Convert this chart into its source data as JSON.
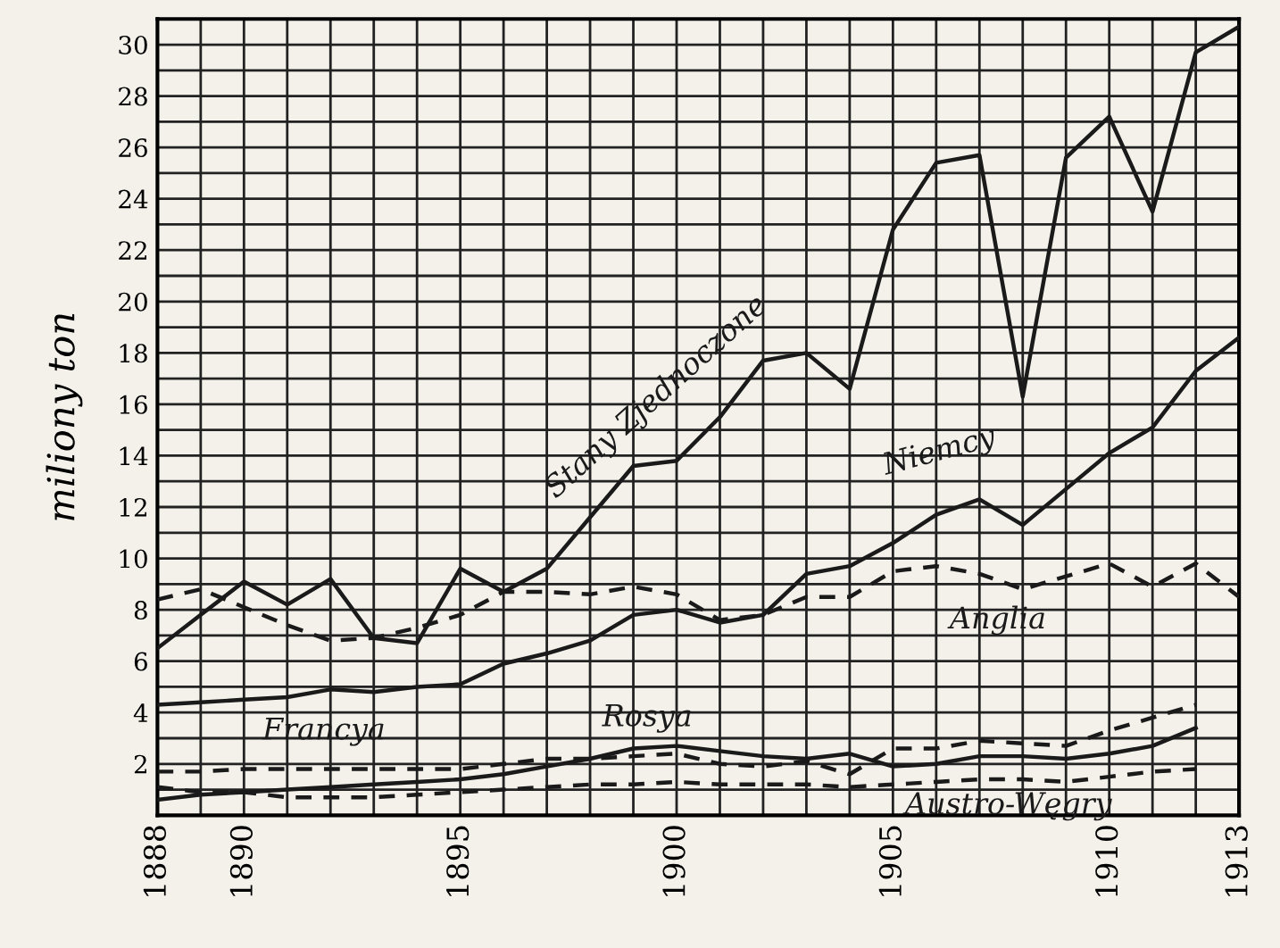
{
  "chart_data": {
    "type": "line",
    "ylabel": "miliony ton",
    "x": [
      1888,
      1889,
      1890,
      1891,
      1892,
      1893,
      1894,
      1895,
      1896,
      1897,
      1898,
      1899,
      1900,
      1901,
      1902,
      1903,
      1904,
      1905,
      1906,
      1907,
      1908,
      1909,
      1910,
      1911,
      1912,
      1913
    ],
    "xlim": [
      1888,
      1913
    ],
    "xticks": [
      1888,
      1890,
      1895,
      1900,
      1905,
      1910,
      1913
    ],
    "ylim": [
      0,
      31
    ],
    "yticks": [
      2,
      4,
      6,
      8,
      10,
      12,
      14,
      16,
      18,
      20,
      22,
      24,
      26,
      28,
      30
    ],
    "grid": true,
    "legend": false,
    "marker": "none",
    "series": [
      {
        "name": "Stany Zjednoczone",
        "color": "#1a1a1a",
        "line_style": "solid",
        "values": [
          6.5,
          7.8,
          9.1,
          8.2,
          9.2,
          6.9,
          6.7,
          9.6,
          8.7,
          9.6,
          11.6,
          13.6,
          13.8,
          15.5,
          17.7,
          18.0,
          16.6,
          22.8,
          25.4,
          25.7,
          16.3,
          25.6,
          27.2,
          23.5,
          29.7,
          30.7
        ]
      },
      {
        "name": "Niemcy",
        "color": "#1a1a1a",
        "line_style": "solid",
        "values": [
          4.3,
          4.4,
          4.5,
          4.6,
          4.9,
          4.8,
          5.0,
          5.1,
          5.9,
          6.3,
          6.8,
          7.8,
          8.0,
          7.5,
          7.8,
          9.4,
          9.7,
          10.6,
          11.7,
          12.3,
          11.3,
          12.7,
          14.1,
          15.1,
          17.3,
          18.6
        ]
      },
      {
        "name": "Anglia",
        "color": "#1a1a1a",
        "line_style": "dashed",
        "values": [
          8.4,
          8.8,
          8.1,
          7.4,
          6.8,
          6.9,
          7.3,
          7.8,
          8.7,
          8.7,
          8.6,
          8.9,
          8.6,
          7.6,
          7.8,
          8.5,
          8.5,
          9.5,
          9.7,
          9.4,
          8.8,
          9.3,
          9.8,
          8.9,
          9.8,
          8.5
        ]
      },
      {
        "name": "Francya",
        "color": "#1a1a1a",
        "line_style": "dashed",
        "values": [
          1.7,
          1.7,
          1.8,
          1.8,
          1.8,
          1.8,
          1.8,
          1.8,
          2.0,
          2.2,
          2.2,
          2.3,
          2.4,
          2.0,
          1.9,
          2.1,
          1.6,
          2.6,
          2.6,
          2.9,
          2.8,
          2.7,
          3.3,
          3.8,
          4.3,
          null
        ]
      },
      {
        "name": "Rosya",
        "color": "#1a1a1a",
        "line_style": "solid",
        "values": [
          0.6,
          0.8,
          0.9,
          1.0,
          1.1,
          1.2,
          1.3,
          1.4,
          1.6,
          1.9,
          2.2,
          2.6,
          2.7,
          2.5,
          2.3,
          2.2,
          2.4,
          1.9,
          2.0,
          2.3,
          2.3,
          2.2,
          2.4,
          2.7,
          3.4,
          null
        ]
      },
      {
        "name": "Austro-Węgry",
        "color": "#1a1a1a",
        "line_style": "dashed",
        "values": [
          1.1,
          0.9,
          0.9,
          0.7,
          0.7,
          0.7,
          0.8,
          0.9,
          1.0,
          1.1,
          1.2,
          1.2,
          1.3,
          1.2,
          1.2,
          1.2,
          1.1,
          1.2,
          1.3,
          1.4,
          1.4,
          1.3,
          1.5,
          1.7,
          1.8,
          null
        ]
      }
    ]
  }
}
